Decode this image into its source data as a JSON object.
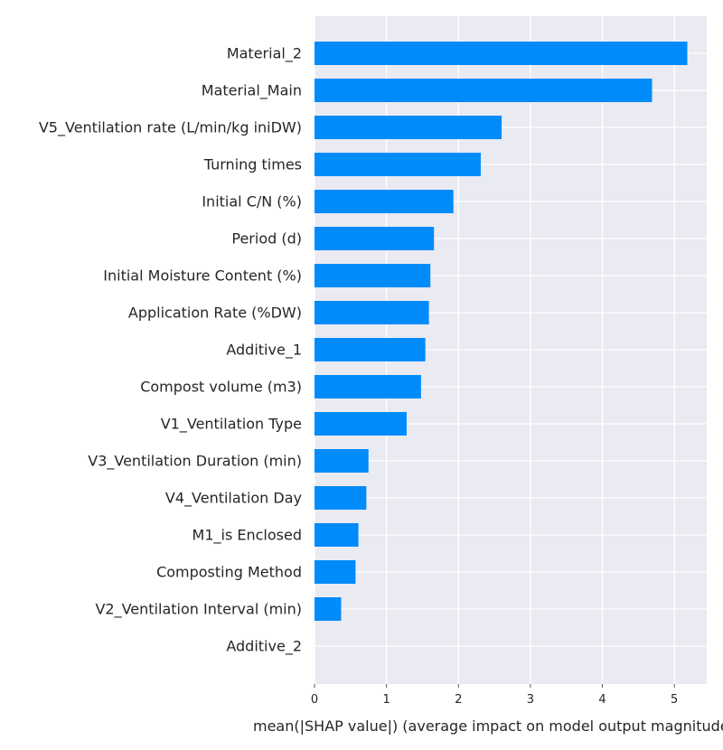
{
  "chart_data": {
    "type": "bar",
    "orientation": "horizontal",
    "categories": [
      "Material_2",
      "Material_Main",
      "V5_Ventilation rate (L/min/kg iniDW)",
      "Turning times",
      "Initial C/N (%)",
      "Period (d)",
      "Initial Moisture Content (%)",
      "Application Rate (%DW)",
      "Additive_1",
      "Compost volume (m3)",
      "V1_Ventilation Type",
      "V3_Ventilation Duration (min)",
      "V4_Ventilation Day",
      "M1_is Enclosed",
      "Composting Method",
      "V2_Ventilation Interval (min)",
      "Additive_2"
    ],
    "values": [
      5.18,
      4.69,
      2.6,
      2.31,
      1.93,
      1.66,
      1.61,
      1.59,
      1.54,
      1.48,
      1.28,
      0.75,
      0.72,
      0.61,
      0.57,
      0.37,
      0.0
    ],
    "title": "",
    "xlabel": "mean(|SHAP value|) (average impact on model output magnitude)",
    "ylabel": "",
    "xlim": [
      0,
      5.45
    ],
    "xticks": [
      0,
      1,
      2,
      3,
      4,
      5
    ],
    "xtick_labels": [
      "0",
      "1",
      "2",
      "3",
      "4",
      "5"
    ],
    "grid": true,
    "legend": "none",
    "colors": {
      "bar": "#008bfb",
      "plot_background": "#eaeaf2",
      "grid": "#ffffff",
      "text": "#262626"
    }
  }
}
